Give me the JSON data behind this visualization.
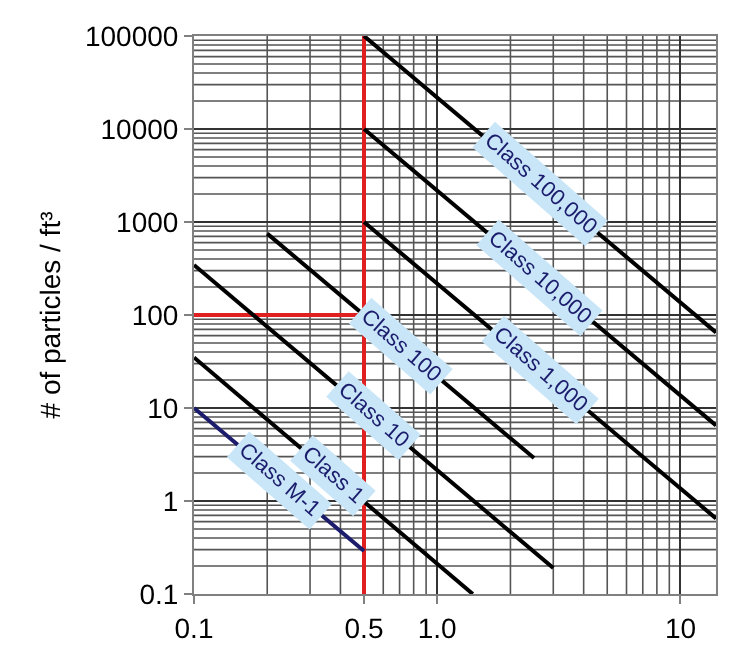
{
  "chart_data": {
    "type": "line",
    "ylabel": "# of particles / ft³",
    "log": "xy",
    "grid": true,
    "legend": false,
    "marker": "none",
    "line_style": "solid",
    "xlim": [
      0.1,
      14
    ],
    "ylim": [
      0.1,
      100000
    ],
    "xticks": [
      0.1,
      0.5,
      {
        "value": 1,
        "label": "1.0"
      },
      10
    ],
    "yticks": [
      0.1,
      1,
      10,
      100,
      1000,
      10000,
      100000
    ],
    "series": [
      {
        "name": "Class 100,000",
        "color": "#000000",
        "x": [
          0.5,
          14
        ],
        "values": [
          100000,
          65
        ]
      },
      {
        "name": "Class 10,000",
        "color": "#000000",
        "x": [
          0.5,
          14
        ],
        "values": [
          10000,
          6.5
        ]
      },
      {
        "name": "Class 1,000",
        "color": "#000000",
        "x": [
          0.5,
          14
        ],
        "values": [
          1000,
          0.65
        ]
      },
      {
        "name": "Class 100",
        "color": "#000000",
        "x": [
          0.2,
          2.5
        ],
        "values": [
          750,
          2.9
        ]
      },
      {
        "name": "Class 10",
        "color": "#000000",
        "x": [
          0.1,
          3
        ],
        "values": [
          345,
          0.19
        ]
      },
      {
        "name": "Class 1",
        "color": "#000000",
        "x": [
          0.1,
          1.4
        ],
        "values": [
          35,
          0.1
        ]
      },
      {
        "name": "Class M-1",
        "color": "#1c1c6c",
        "x": [
          0.1,
          0.5
        ],
        "values": [
          10,
          0.29
        ]
      }
    ],
    "ref_lines": [
      {
        "axis": "x",
        "value": 0.5,
        "color": "#e02020"
      },
      {
        "axis": "y",
        "value": 100,
        "color": "#e02020"
      }
    ]
  }
}
